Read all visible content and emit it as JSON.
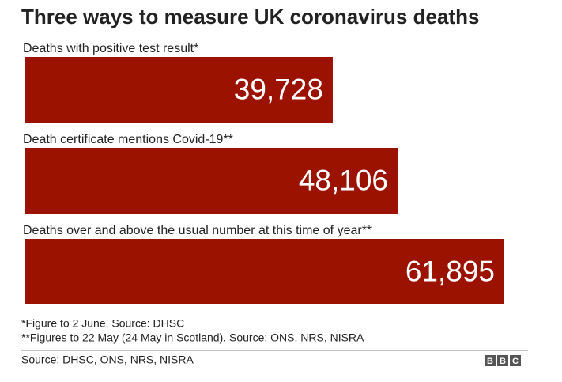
{
  "chart_data": {
    "type": "bar",
    "orientation": "horizontal",
    "title": "Three ways to measure UK coronavirus deaths",
    "categories": [
      "Deaths with positive test result*",
      "Death certificate mentions Covid-19**",
      "Deaths over and above the usual number at this time of year**"
    ],
    "values": [
      39728,
      48106,
      61895
    ],
    "value_labels": [
      "39,728",
      "48,106",
      "61,895"
    ],
    "color": "#9b1200",
    "footnotes": [
      "*Figure to 2 June. Source: DHSC",
      "**Figures to 22 May (24 May in Scotland). Source: ONS, NRS, NISRA"
    ],
    "source": "Source: DHSC, ONS, NRS, NISRA",
    "logo": "BBC"
  }
}
